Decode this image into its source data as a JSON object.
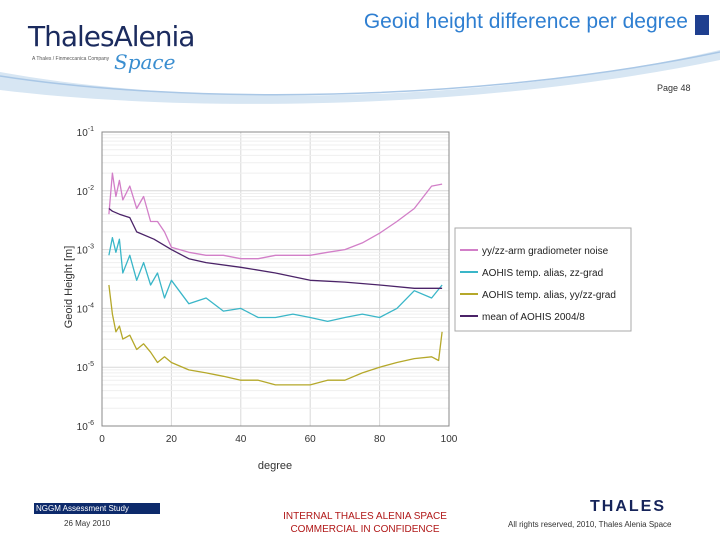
{
  "header": {
    "logo_text": "ThalesAlenia",
    "logo_tagline": "A Thales / Finmeccanica Company",
    "logo_space": "Space",
    "title": "Geoid height difference per degree",
    "page_label": "Page 48"
  },
  "footer": {
    "study": "NGGM Assessment Study",
    "date": "26 May 2010",
    "internal_line1": "INTERNAL THALES ALENIA SPACE",
    "internal_line2": "COMMERCIAL IN CONFIDENCE",
    "company": "THALES",
    "rights": "All rights reserved, 2010, Thales Alenia Space"
  },
  "colors": {
    "title_blue": "#2f7fd1",
    "navy": "#1b2b5e",
    "footer_red": "#b01818"
  },
  "chart_data": {
    "type": "line",
    "title": "",
    "xlabel": "degree",
    "ylabel": "Geoid Height [m]",
    "x_ticks": [
      "0",
      "20",
      "40",
      "60",
      "80",
      "100"
    ],
    "y_ticks": [
      {
        "base": "10",
        "exp": "-1"
      },
      {
        "base": "10",
        "exp": "-2"
      },
      {
        "base": "10",
        "exp": "-3"
      },
      {
        "base": "10",
        "exp": "-4"
      },
      {
        "base": "10",
        "exp": "-5"
      },
      {
        "base": "10",
        "exp": "-6"
      }
    ],
    "xlim": [
      0,
      100
    ],
    "ylim": [
      1e-06,
      0.1
    ],
    "yscale": "log",
    "grid": true,
    "legend_position": "right",
    "series": [
      {
        "name": "yy/zz-arm gradiometer noise",
        "color": "#d27fc8",
        "x": [
          2,
          3,
          4,
          5,
          6,
          8,
          10,
          12,
          14,
          16,
          18,
          20,
          25,
          30,
          35,
          40,
          45,
          50,
          55,
          60,
          65,
          70,
          75,
          80,
          85,
          90,
          95,
          98
        ],
        "y": [
          0.004,
          0.02,
          0.008,
          0.015,
          0.007,
          0.012,
          0.005,
          0.008,
          0.003,
          0.003,
          0.002,
          0.0011,
          0.0009,
          0.0008,
          0.0008,
          0.0007,
          0.0007,
          0.0008,
          0.0008,
          0.0008,
          0.0009,
          0.001,
          0.0013,
          0.0019,
          0.003,
          0.005,
          0.012,
          0.013
        ]
      },
      {
        "name": "AOHIS temp. alias, zz-grad",
        "color": "#3ab6c8",
        "x": [
          2,
          3,
          4,
          5,
          6,
          8,
          10,
          12,
          14,
          16,
          18,
          20,
          25,
          30,
          35,
          40,
          45,
          50,
          55,
          60,
          65,
          70,
          75,
          80,
          85,
          90,
          95,
          98
        ],
        "y": [
          0.0008,
          0.0016,
          0.0009,
          0.0015,
          0.0004,
          0.0008,
          0.0003,
          0.0006,
          0.00025,
          0.0004,
          0.00015,
          0.0003,
          0.00012,
          0.00015,
          9e-05,
          0.0001,
          7e-05,
          7e-05,
          8e-05,
          7e-05,
          6e-05,
          7e-05,
          8e-05,
          7e-05,
          0.0001,
          0.0002,
          0.00015,
          0.00025
        ]
      },
      {
        "name": "AOHIS temp. alias, yy/zz-grad",
        "color": "#b5a82a",
        "x": [
          2,
          3,
          4,
          5,
          6,
          8,
          10,
          12,
          14,
          16,
          18,
          20,
          25,
          30,
          35,
          40,
          45,
          50,
          55,
          60,
          65,
          70,
          75,
          80,
          85,
          90,
          95,
          97,
          98
        ],
        "y": [
          0.00025,
          8e-05,
          4e-05,
          5e-05,
          3e-05,
          3.5e-05,
          2e-05,
          2.5e-05,
          1.8e-05,
          1.2e-05,
          1.5e-05,
          1.2e-05,
          9e-06,
          8e-06,
          7e-06,
          6e-06,
          6e-06,
          5e-06,
          5e-06,
          5e-06,
          6e-06,
          6e-06,
          8e-06,
          1e-05,
          1.2e-05,
          1.4e-05,
          1.5e-05,
          1.3e-05,
          4e-05
        ]
      },
      {
        "name": "mean of AOHIS 2004/8",
        "color": "#4b2368",
        "x": [
          2,
          3,
          5,
          8,
          10,
          15,
          20,
          25,
          30,
          40,
          50,
          60,
          70,
          80,
          90,
          98
        ],
        "y": [
          0.005,
          0.0045,
          0.004,
          0.0035,
          0.002,
          0.0015,
          0.001,
          0.0007,
          0.0006,
          0.0005,
          0.0004,
          0.0003,
          0.00028,
          0.00025,
          0.00022,
          0.00022
        ]
      }
    ]
  }
}
